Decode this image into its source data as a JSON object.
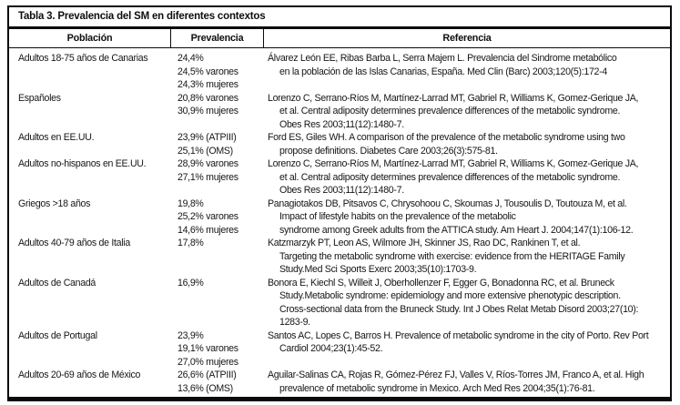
{
  "colors": {
    "border": "#0a0a0a",
    "text": "#161616",
    "background": "#ffffff"
  },
  "table": {
    "title": "Tabla 3. Prevalencia del SM en diferentes contextos",
    "columns": [
      "Población",
      "Prevalencia",
      "Referencia"
    ],
    "rows": [
      {
        "poblacion": "Adultos 18-75 años de Canarias",
        "prevalencia": [
          "24,4%",
          "24,5% varones",
          "24,3% mujeres"
        ],
        "referencia": [
          "Álvarez León EE, Ribas Barba L, Serra Majem L. Prevalencia del Sindrome metabólico",
          "en la población de las Islas Canarias, España. Med Clin (Barc) 2003;120(5):172-4"
        ]
      },
      {
        "poblacion": "Españoles",
        "prevalencia": [
          "20,8% varones",
          "30,9% mujeres"
        ],
        "referencia": [
          "Lorenzo C, Serrano-Ríos M, Martínez-Larrad MT, Gabriel R, Williams K, Gomez-Gerique JA,",
          "et al. Central adiposity determines prevalence differences of the metabolic syndrome.",
          "Obes Res 2003;11(12):1480-7."
        ]
      },
      {
        "poblacion": "Adultos en EE.UU.",
        "prevalencia": [
          "23,9% (ATPIII)",
          "25,1% (OMS)"
        ],
        "referencia": [
          "Ford ES, Giles WH. A comparison of the prevalence of the metabolic syndrome using two",
          "propose definitions. Diabetes Care 2003;26(3):575-81."
        ]
      },
      {
        "poblacion": "Adultos no-hispanos en EE.UU.",
        "prevalencia": [
          "28,9% varones",
          "27,1% mujeres"
        ],
        "referencia": [
          "Lorenzo C, Serrano-Ríos M, Martínez-Larrad MT, Gabriel R, Williams K, Gomez-Gerique JA,",
          "et al. Central adiposity determines prevalence differences of the metabolic syndrome.",
          "Obes Res 2003;11(12):1480-7."
        ]
      },
      {
        "poblacion": "Griegos >18 años",
        "prevalencia": [
          "19,8%",
          "25,2% varones",
          "14,6% mujeres"
        ],
        "referencia": [
          "Panagiotakos DB, Pitsavos C, Chrysohoou C, Skoumas J, Tousoulis D, Toutouza M, et al.",
          "Impact of lifestyle habits on the prevalence of the metabolic",
          "syndrome among Greek adults from the ATTICA study. Am Heart J. 2004;147(1):106-12."
        ]
      },
      {
        "poblacion": "Adultos 40-79 años de Italia",
        "prevalencia": [
          "17,8%"
        ],
        "referencia": [
          "Katzmarzyk PT, Leon AS, Wilmore JH, Skinner JS, Rao DC, Rankinen T, et al.",
          "Targeting the metabolic syndrome with exercise: evidence from the HERITAGE Family",
          "Study.Med Sci Sports Exerc 2003;35(10):1703-9."
        ]
      },
      {
        "poblacion": "Adultos de Canadá",
        "prevalencia": [
          "16,9%"
        ],
        "referencia": [
          "Bonora E, Kiechl S, Willeit J, Oberhollenzer F, Egger G, Bonadonna RC, et al. Bruneck",
          "Study.Metabolic syndrome: epidemiology and more extensive phenotypic description.",
          "Cross-sectional data from the Bruneck Study. Int J Obes Relat Metab Disord 2003;27(10):",
          "1283-9."
        ]
      },
      {
        "poblacion": "Adultos de Portugal",
        "prevalencia": [
          "23,9%",
          "19,1% varones",
          "27,0% mujeres"
        ],
        "referencia": [
          "Santos AC, Lopes C, Barros H. Prevalence of metabolic syndrome in the city of Porto. Rev Port",
          "Cardiol 2004;23(1):45-52."
        ]
      },
      {
        "poblacion": "Adultos 20-69 años de México",
        "prevalencia": [
          "26,6% (ATPIII)",
          "13,6% (OMS)"
        ],
        "referencia": [
          "Aguilar-Salinas CA, Rojas R, Gómez-Pérez FJ, Valles V, Ríos-Torres JM, Franco A, et al. High",
          "prevalence of metabolic syndrome in Mexico. Arch Med Res 2004;35(1):76-81."
        ]
      }
    ]
  }
}
